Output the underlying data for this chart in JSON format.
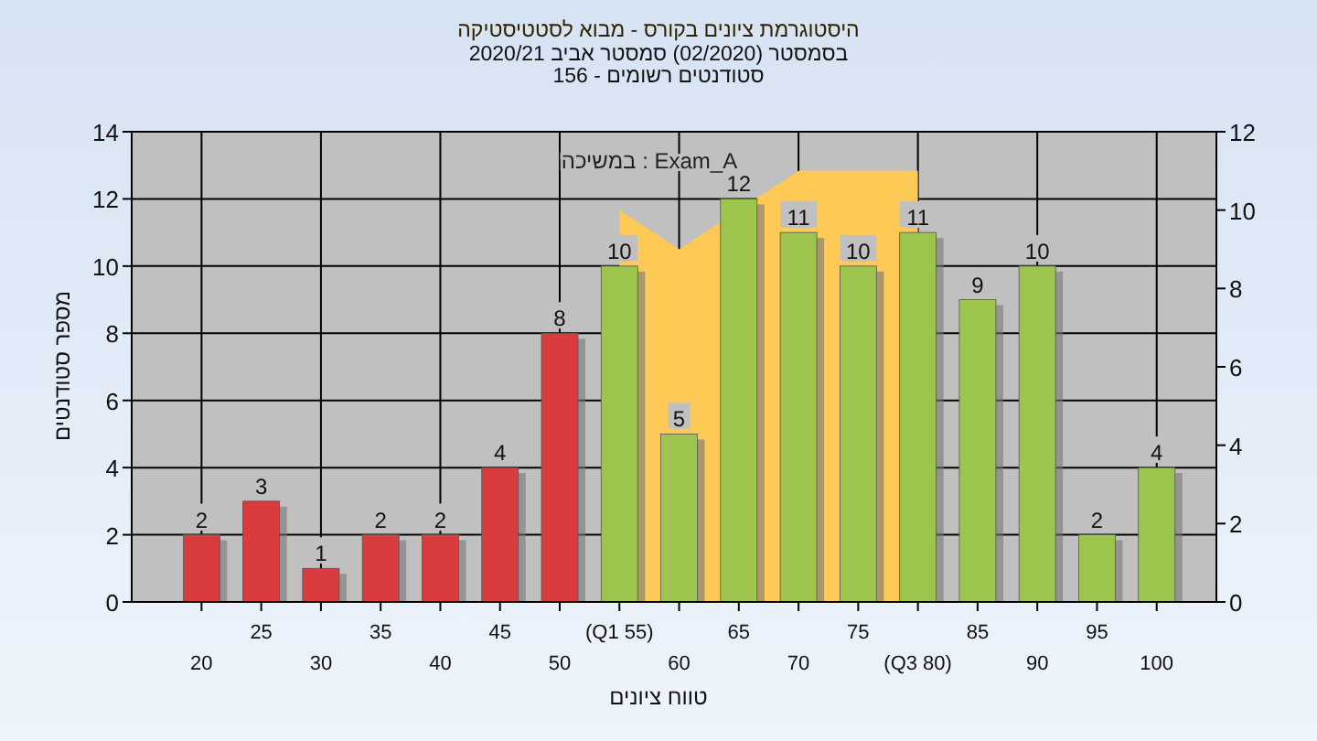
{
  "chart_data": {
    "type": "bar",
    "title": "היסטוגרמת ציונים בקורס - מבוא לסטטיסטיקה",
    "subtitle": "בסמסטר (02/2020) סמסטר אביב 2020/21\nסטודנטים רשומים - 156",
    "xlabel": "טווח ציונים",
    "ylabel": "מספר סטודנטים",
    "annotations": [
      "Exam_A : במשיכה"
    ],
    "categories": [
      "20",
      "25",
      "30",
      "35",
      "40",
      "45",
      "50",
      "(Q1 55)",
      "60",
      "65",
      "70",
      "75",
      "(Q3 80)",
      "85",
      "90",
      "95",
      "100"
    ],
    "series": [
      {
        "type": "area",
        "axis": "y2",
        "color": "#ffc955",
        "values": [
          null,
          null,
          null,
          null,
          null,
          null,
          null,
          10,
          9,
          null,
          11,
          11,
          11,
          null,
          null,
          null,
          null
        ]
      },
      {
        "value_labels": [
          "2",
          "3",
          "1",
          "2",
          "2",
          "4",
          "8",
          "10",
          "5",
          "12",
          "11",
          "10",
          "11",
          "9",
          "10",
          "2",
          "4"
        ],
        "colors": [
          "#d83c3c",
          "#d83c3c",
          "#d83c3c",
          "#d83c3c",
          "#d83c3c",
          "#d83c3c",
          "#d83c3c",
          "#9dc44c",
          "#9dc44c",
          "#9dc44c",
          "#9dc44c",
          "#9dc44c",
          "#9dc44c",
          "#9dc44c",
          "#9dc44c",
          "#9dc44c",
          "#9dc44c"
        ],
        "values": [
          2,
          3,
          1,
          2,
          2,
          4,
          8,
          10,
          5,
          12,
          11,
          10,
          11,
          9,
          10,
          2,
          4
        ]
      }
    ],
    "ylim": [
      0,
      14
    ],
    "yticks": [
      0,
      2,
      4,
      6,
      8,
      10,
      12,
      14
    ],
    "y2lim": [
      0,
      12
    ],
    "y2ticks": [
      0,
      2,
      4,
      6,
      8,
      10,
      12
    ],
    "grid": true
  }
}
